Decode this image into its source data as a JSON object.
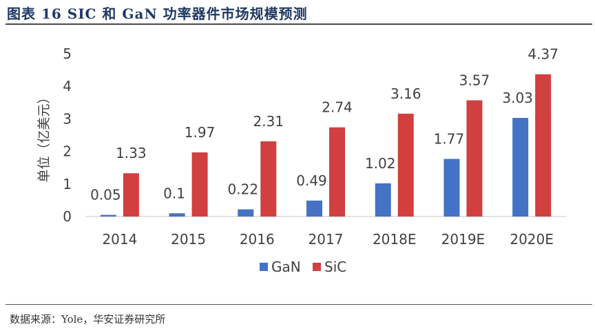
{
  "figure": {
    "title": "图表 16   SIC 和 GaN 功率器件市场规模预测",
    "source": "数据来源：Yole，华安证券研究所"
  },
  "colors": {
    "gan": "#4472c4",
    "sic": "#d13f3f",
    "axis": "#d9d9d9",
    "text": "#404040",
    "title": "#1f3864"
  },
  "chart_data": {
    "type": "bar",
    "title": "",
    "xlabel": "",
    "ylabel": "单位（亿美元）",
    "ylim": [
      0,
      5
    ],
    "yticks": [
      0,
      1,
      2,
      3,
      4,
      5
    ],
    "grid": false,
    "legend": "bottom",
    "categories": [
      "2014",
      "2015",
      "2016",
      "2017",
      "2018E",
      "2019E",
      "2020E"
    ],
    "series": [
      {
        "name": "GaN",
        "color": "#4472c4",
        "values": [
          0.05,
          0.1,
          0.22,
          0.49,
          1.02,
          1.77,
          3.03
        ]
      },
      {
        "name": "SiC",
        "color": "#d13f3f",
        "values": [
          1.33,
          1.97,
          2.31,
          2.74,
          3.16,
          3.57,
          4.37
        ]
      }
    ]
  }
}
